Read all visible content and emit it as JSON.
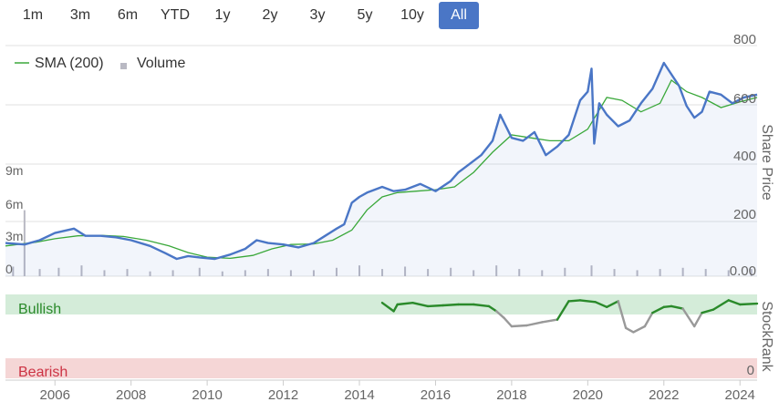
{
  "range_selector": {
    "buttons": [
      "1m",
      "3m",
      "6m",
      "YTD",
      "1y",
      "2y",
      "3y",
      "5y",
      "10y",
      "All"
    ],
    "active": "All"
  },
  "colors": {
    "price_line": "#4a76c6",
    "sma_line": "#3aa83a",
    "volume_bar": "#b9b9c3",
    "bullish_band": "#d4ecd9",
    "bearish_band": "#f5d6d6",
    "rank_bullish": "#2a8a2a",
    "rank_neutral": "#999999",
    "active_button": "#4a76c6"
  },
  "chart_data": [
    {
      "type": "line",
      "title": "",
      "legend": {
        "position": "top-left",
        "entries": [
          "SMA (200)",
          "Volume"
        ]
      },
      "x_axis": {
        "ticks": [
          "2006",
          "2008",
          "2010",
          "2012",
          "2014",
          "2016",
          "2018",
          "2020",
          "2022",
          "2024"
        ],
        "range": [
          2004.7,
          2024.45
        ]
      },
      "y_axis_right": {
        "label": "Share Price",
        "ticks": [
          "0.00",
          "200",
          "400",
          "600",
          "800"
        ],
        "range": [
          0,
          800
        ]
      },
      "y_axis_left": {
        "label": "",
        "ticks": [
          "0",
          "3m",
          "6m",
          "9m"
        ],
        "range": [
          0,
          12
        ]
      },
      "series": [
        {
          "name": "Share Price",
          "x": [
            2004.7,
            2005.2,
            2005.6,
            2006.0,
            2006.5,
            2006.8,
            2007.2,
            2007.6,
            2008.0,
            2008.5,
            2008.9,
            2009.2,
            2009.5,
            2009.8,
            2010.2,
            2010.6,
            2011.0,
            2011.3,
            2011.6,
            2012.0,
            2012.4,
            2012.8,
            2013.1,
            2013.4,
            2013.6,
            2013.8,
            2014.0,
            2014.2,
            2014.6,
            2014.9,
            2015.2,
            2015.6,
            2016.0,
            2016.4,
            2016.6,
            2016.9,
            2017.2,
            2017.5,
            2017.7,
            2018.0,
            2018.3,
            2018.6,
            2018.9,
            2019.2,
            2019.5,
            2019.8,
            2020.0,
            2020.1,
            2020.17,
            2020.3,
            2020.5,
            2020.8,
            2021.1,
            2021.4,
            2021.7,
            2022.0,
            2022.2,
            2022.4,
            2022.6,
            2022.8,
            2023.0,
            2023.2,
            2023.5,
            2023.8,
            2024.1,
            2024.45
          ],
          "values": [
            115,
            110,
            125,
            150,
            165,
            140,
            140,
            135,
            125,
            105,
            80,
            60,
            70,
            65,
            60,
            75,
            95,
            125,
            115,
            110,
            100,
            115,
            140,
            165,
            180,
            255,
            275,
            290,
            310,
            295,
            300,
            320,
            295,
            330,
            360,
            390,
            420,
            470,
            560,
            480,
            470,
            500,
            420,
            450,
            490,
            610,
            640,
            720,
            460,
            600,
            560,
            520,
            540,
            600,
            650,
            740,
            700,
            660,
            590,
            550,
            570,
            640,
            630,
            600,
            620,
            630
          ]
        },
        {
          "name": "SMA (200)",
          "x": [
            2004.7,
            2005.5,
            2006.0,
            2006.6,
            2007.2,
            2007.8,
            2008.4,
            2009.0,
            2009.5,
            2010.0,
            2010.6,
            2011.2,
            2011.7,
            2012.2,
            2012.8,
            2013.3,
            2013.8,
            2014.2,
            2014.6,
            2015.0,
            2015.5,
            2016.0,
            2016.5,
            2017.0,
            2017.5,
            2018.0,
            2018.5,
            2019.0,
            2019.5,
            2020.0,
            2020.5,
            2020.9,
            2021.4,
            2021.9,
            2022.2,
            2022.6,
            2023.0,
            2023.5,
            2024.0,
            2024.45
          ],
          "values": [
            105,
            118,
            130,
            140,
            142,
            138,
            125,
            105,
            82,
            66,
            62,
            72,
            95,
            110,
            112,
            125,
            160,
            230,
            275,
            290,
            295,
            300,
            310,
            360,
            430,
            490,
            480,
            470,
            470,
            510,
            620,
            610,
            570,
            600,
            680,
            640,
            620,
            585,
            605,
            620
          ]
        }
      ],
      "volume": {
        "x": [
          2004.9,
          2005.2,
          2005.6,
          2006.1,
          2006.7,
          2007.3,
          2007.9,
          2008.5,
          2009.1,
          2009.8,
          2010.4,
          2011.0,
          2011.6,
          2012.2,
          2012.8,
          2013.4,
          2014.0,
          2014.6,
          2015.2,
          2015.8,
          2016.4,
          2017.0,
          2017.6,
          2018.2,
          2018.8,
          2019.4,
          2020.1,
          2020.7,
          2021.3,
          2021.9,
          2022.5,
          2023.1,
          2023.7,
          2024.3
        ],
        "values": [
          0.8,
          5.5,
          0.6,
          0.7,
          0.9,
          0.5,
          0.6,
          0.4,
          0.5,
          0.7,
          0.4,
          0.5,
          0.6,
          0.5,
          0.5,
          0.7,
          0.9,
          0.6,
          0.8,
          0.6,
          0.7,
          0.5,
          0.9,
          0.6,
          0.5,
          0.7,
          0.9,
          0.6,
          0.5,
          0.6,
          0.7,
          0.6,
          0.5,
          0.6
        ]
      }
    },
    {
      "type": "line",
      "title": "",
      "y_axis_right": {
        "label": "StockRank",
        "ticks": [
          "0"
        ],
        "range": [
          0,
          100
        ]
      },
      "bands": [
        {
          "name": "Bullish",
          "from": 80,
          "to": 100
        },
        {
          "name": "Bearish",
          "from": 0,
          "to": 20
        }
      ],
      "series": [
        {
          "name": "StockRank",
          "x": [
            2014.6,
            2014.9,
            2015.0,
            2015.4,
            2015.8,
            2016.2,
            2016.6,
            2017.0,
            2017.4,
            2017.6,
            2017.8,
            2018.0,
            2018.4,
            2018.8,
            2019.2,
            2019.5,
            2019.8,
            2020.2,
            2020.5,
            2020.8,
            2021.0,
            2021.2,
            2021.5,
            2021.7,
            2022.0,
            2022.2,
            2022.5,
            2022.8,
            2023.0,
            2023.3,
            2023.7,
            2024.0,
            2024.45
          ],
          "values": [
            90,
            80,
            88,
            90,
            86,
            87,
            88,
            88,
            86,
            80,
            72,
            62,
            63,
            67,
            70,
            92,
            93,
            91,
            85,
            92,
            60,
            55,
            62,
            78,
            85,
            86,
            83,
            62,
            78,
            82,
            93,
            88,
            89
          ]
        }
      ]
    }
  ]
}
